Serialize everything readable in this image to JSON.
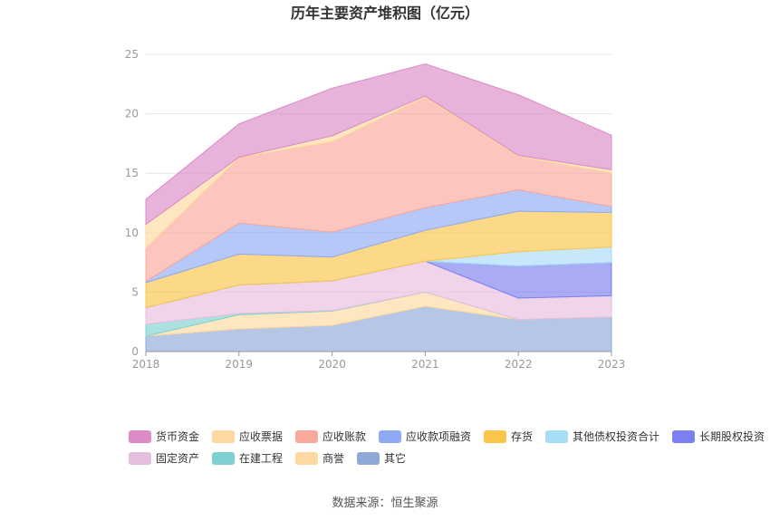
{
  "chart_data": {
    "type": "area",
    "stacked": true,
    "title": "历年主要资产堆积图（亿元）",
    "xlabel": "",
    "ylabel": "",
    "x": [
      "2018",
      "2019",
      "2020",
      "2021",
      "2022",
      "2023"
    ],
    "ylim": [
      0,
      25
    ],
    "yticks": [
      0,
      5,
      10,
      15,
      20,
      25
    ],
    "grid": true,
    "legend_position": "bottom",
    "series": [
      {
        "name": "其它",
        "color": "#8fa8d8",
        "values": [
          1.3,
          1.9,
          2.2,
          3.8,
          2.7,
          2.9
        ]
      },
      {
        "name": "商誉",
        "color": "#fdd9a0",
        "values": [
          0.0,
          1.2,
          1.2,
          1.2,
          0.0,
          0.0
        ]
      },
      {
        "name": "在建工程",
        "color": "#7fd1d1",
        "values": [
          1.0,
          0.1,
          0.05,
          0.0,
          0.0,
          0.0
        ]
      },
      {
        "name": "固定资产",
        "color": "#e8bede",
        "values": [
          1.4,
          2.4,
          2.5,
          2.6,
          1.8,
          1.8
        ]
      },
      {
        "name": "长期股权投资",
        "color": "#7b7ff0",
        "values": [
          0.0,
          0.0,
          0.0,
          0.0,
          2.7,
          2.8
        ]
      },
      {
        "name": "其他债权投资合计",
        "color": "#a7dcf7",
        "values": [
          0.0,
          0.0,
          0.0,
          0.0,
          1.2,
          1.3
        ]
      },
      {
        "name": "存货",
        "color": "#fbc54a",
        "values": [
          2.1,
          2.6,
          2.0,
          2.6,
          3.4,
          2.9
        ]
      },
      {
        "name": "应收款项融资",
        "color": "#8eaaf4",
        "values": [
          0.1,
          2.6,
          2.1,
          1.9,
          1.8,
          0.5
        ]
      },
      {
        "name": "应收账款",
        "color": "#fba89c",
        "values": [
          2.8,
          5.5,
          7.6,
          9.3,
          2.8,
          2.8
        ]
      },
      {
        "name": "应收票据",
        "color": "#fdd9a0",
        "values": [
          2.0,
          0.05,
          0.5,
          0.1,
          0.1,
          0.3
        ]
      },
      {
        "name": "货币资金",
        "color": "#dc8bc6",
        "values": [
          2.1,
          2.8,
          4.0,
          2.7,
          5.1,
          2.9
        ]
      }
    ],
    "legend_order": [
      "货币资金",
      "应收票据",
      "应收账款",
      "应收款项融资",
      "存货",
      "其他债权投资合计",
      "长期股权投资",
      "固定资产",
      "在建工程",
      "商誉",
      "其它"
    ]
  },
  "source_label": "数据来源：恒生聚源"
}
